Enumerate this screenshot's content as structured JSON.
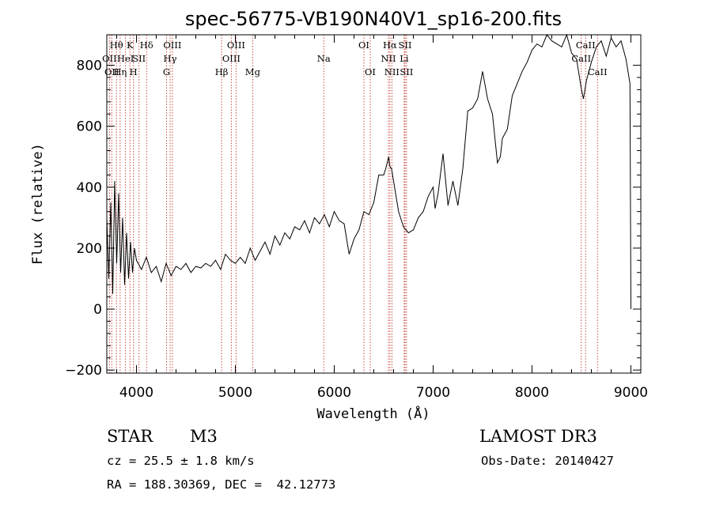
{
  "chart_data": {
    "type": "line",
    "title": "spec-56775-VB190N40V1_sp16-200.fits",
    "xlabel": "Wavelength (Å)",
    "ylabel": "Flux (relative)",
    "xlim": [
      3700,
      9100
    ],
    "ylim": [
      -210,
      900
    ],
    "xticks": [
      {
        "value": 4000,
        "label": "4000"
      },
      {
        "value": 5000,
        "label": "5000"
      },
      {
        "value": 6000,
        "label": "6000"
      },
      {
        "value": 7000,
        "label": "7000"
      },
      {
        "value": 8000,
        "label": "8000"
      },
      {
        "value": 9000,
        "label": "9000"
      }
    ],
    "yticks": [
      {
        "value": -200,
        "label": "−200"
      },
      {
        "value": 0,
        "label": "0"
      },
      {
        "value": 200,
        "label": "200"
      },
      {
        "value": 400,
        "label": "400"
      },
      {
        "value": 600,
        "label": "600"
      },
      {
        "value": 800,
        "label": "800"
      }
    ],
    "series": [
      {
        "name": "flux",
        "x": [
          3700,
          3720,
          3740,
          3760,
          3780,
          3800,
          3820,
          3840,
          3860,
          3880,
          3900,
          3920,
          3940,
          3960,
          3980,
          4000,
          4050,
          4100,
          4150,
          4200,
          4250,
          4300,
          4350,
          4400,
          4450,
          4500,
          4550,
          4600,
          4650,
          4700,
          4750,
          4800,
          4850,
          4900,
          4950,
          5000,
          5050,
          5100,
          5150,
          5200,
          5250,
          5300,
          5350,
          5400,
          5450,
          5500,
          5550,
          5600,
          5650,
          5700,
          5750,
          5800,
          5850,
          5900,
          5950,
          6000,
          6050,
          6100,
          6150,
          6200,
          6250,
          6300,
          6350,
          6400,
          6450,
          6500,
          6520,
          6550,
          6560,
          6580,
          6600,
          6620,
          6650,
          6700,
          6750,
          6800,
          6850,
          6900,
          6950,
          7000,
          7020,
          7050,
          7100,
          7150,
          7200,
          7250,
          7300,
          7350,
          7400,
          7450,
          7500,
          7550,
          7600,
          7650,
          7680,
          7700,
          7750,
          7800,
          7850,
          7900,
          7950,
          8000,
          8050,
          8100,
          8150,
          8200,
          8250,
          8300,
          8350,
          8400,
          8450,
          8500,
          8520,
          8550,
          8600,
          8650,
          8700,
          8750,
          8800,
          8850,
          8900,
          8950,
          8990,
          9000
        ],
        "y": [
          300,
          100,
          350,
          50,
          420,
          150,
          380,
          120,
          300,
          80,
          250,
          100,
          220,
          120,
          200,
          160,
          130,
          170,
          120,
          140,
          90,
          150,
          110,
          140,
          130,
          150,
          120,
          140,
          135,
          150,
          140,
          160,
          130,
          180,
          160,
          150,
          170,
          150,
          200,
          160,
          190,
          220,
          180,
          240,
          210,
          250,
          230,
          270,
          260,
          290,
          250,
          300,
          280,
          310,
          270,
          320,
          290,
          280,
          180,
          230,
          260,
          320,
          310,
          350,
          440,
          440,
          460,
          500,
          470,
          460,
          420,
          380,
          320,
          270,
          250,
          260,
          300,
          320,
          370,
          400,
          330,
          380,
          510,
          340,
          420,
          340,
          460,
          650,
          660,
          690,
          780,
          690,
          640,
          480,
          500,
          560,
          590,
          700,
          740,
          780,
          810,
          850,
          870,
          860,
          900,
          880,
          870,
          860,
          900,
          840,
          820,
          720,
          690,
          750,
          810,
          860,
          880,
          830,
          890,
          860,
          880,
          820,
          740,
          0
        ],
        "color": "#000000"
      }
    ],
    "spectral_lines": [
      {
        "wavelength": 3727,
        "label": "OII",
        "row": 1
      },
      {
        "wavelength": 3750,
        "label": "OII",
        "row": 2
      },
      {
        "wavelength": 3798,
        "label": "Hθ",
        "row": 0
      },
      {
        "wavelength": 3835,
        "label": "Hη",
        "row": 2
      },
      {
        "wavelength": 3889,
        "label": "HeI",
        "row": 1
      },
      {
        "wavelength": 3934,
        "label": "K",
        "row": 0
      },
      {
        "wavelength": 3969,
        "label": "H",
        "row": 2
      },
      {
        "wavelength": 4026,
        "label": "SII",
        "row": 1
      },
      {
        "wavelength": 4102,
        "label": "Hδ",
        "row": 0
      },
      {
        "wavelength": 4304,
        "label": "G",
        "row": 2
      },
      {
        "wavelength": 4340,
        "label": "Hγ",
        "row": 1
      },
      {
        "wavelength": 4363,
        "label": "OIII",
        "row": 0
      },
      {
        "wavelength": 4861,
        "label": "Hβ",
        "row": 2
      },
      {
        "wavelength": 4959,
        "label": "OIII",
        "row": 1
      },
      {
        "wavelength": 5007,
        "label": "OIII",
        "row": 0
      },
      {
        "wavelength": 5175,
        "label": "Mg",
        "row": 2
      },
      {
        "wavelength": 5894,
        "label": "Na",
        "row": 1
      },
      {
        "wavelength": 6300,
        "label": "OI",
        "row": 0
      },
      {
        "wavelength": 6364,
        "label": "OI",
        "row": 2
      },
      {
        "wavelength": 6548,
        "label": "NII",
        "row": 1
      },
      {
        "wavelength": 6563,
        "label": "Hα",
        "row": 0
      },
      {
        "wavelength": 6583,
        "label": "NII",
        "row": 2
      },
      {
        "wavelength": 6707,
        "label": "Li",
        "row": 1
      },
      {
        "wavelength": 6716,
        "label": "SII",
        "row": 0
      },
      {
        "wavelength": 6731,
        "label": "SII",
        "row": 2
      },
      {
        "wavelength": 8498,
        "label": "CaII",
        "row": 1
      },
      {
        "wavelength": 8542,
        "label": "CaII",
        "row": 0
      },
      {
        "wavelength": 8662,
        "label": "CaII",
        "row": 2
      }
    ]
  },
  "info": {
    "object_type": "STAR",
    "subclass": "M3",
    "redshift": "cz = 25.5 ± 1.8 km/s",
    "coordinates": "RA = 188.30369, DEC =  42.12773",
    "survey": "LAMOST DR3",
    "obs_date": "Obs-Date: 20140427"
  }
}
